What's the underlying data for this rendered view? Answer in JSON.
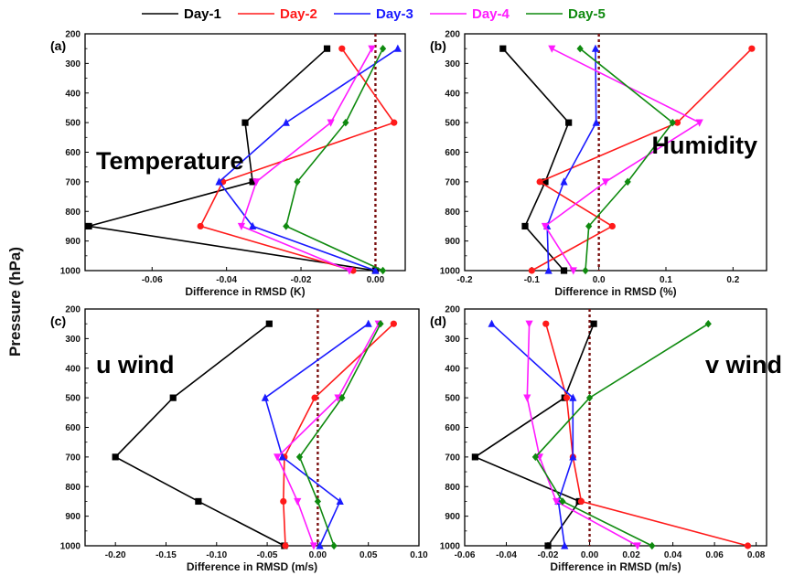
{
  "figure": {
    "y_axis_label": "Pressure (hPa)"
  },
  "legend": [
    {
      "name": "Day-1",
      "color": "#000000",
      "marker": "square"
    },
    {
      "name": "Day-2",
      "color": "#ff1a1a",
      "marker": "circle"
    },
    {
      "name": "Day-3",
      "color": "#1a1aff",
      "marker": "triangle-up"
    },
    {
      "name": "Day-4",
      "color": "#ff1aff",
      "marker": "triangle-down"
    },
    {
      "name": "Day-5",
      "color": "#0f8a0f",
      "marker": "diamond"
    }
  ],
  "chart_data": [
    {
      "type": "line",
      "panel_label": "(a)",
      "annotation": "Temperature",
      "xlabel": "Difference in RMSD (K)",
      "ylabel": "",
      "xlim": [
        -0.078,
        0.008
      ],
      "ylim": [
        200,
        1000
      ],
      "y_reversed": true,
      "xticks": [
        -0.06,
        -0.04,
        -0.02,
        0.0
      ],
      "xtick_labels": [
        "-0.06",
        "-0.04",
        "-0.02",
        "0.00"
      ],
      "yticks": [
        200,
        300,
        400,
        500,
        600,
        700,
        800,
        900,
        1000
      ],
      "zero_line": true,
      "y": [
        250,
        500,
        700,
        850,
        1000
      ],
      "series": [
        {
          "name": "Day-1",
          "values": [
            -0.013,
            -0.035,
            -0.033,
            -0.077,
            0.0
          ]
        },
        {
          "name": "Day-2",
          "values": [
            -0.009,
            0.005,
            -0.041,
            -0.047,
            -0.006
          ]
        },
        {
          "name": "Day-3",
          "values": [
            0.006,
            -0.024,
            -0.042,
            -0.033,
            0.0
          ]
        },
        {
          "name": "Day-4",
          "values": [
            -0.001,
            -0.012,
            -0.032,
            -0.036,
            -0.007
          ]
        },
        {
          "name": "Day-5",
          "values": [
            0.002,
            -0.008,
            -0.021,
            -0.024,
            0.002
          ]
        }
      ]
    },
    {
      "type": "line",
      "panel_label": "(b)",
      "annotation": "Humidity",
      "xlabel": "Difference in RMSD (%)",
      "ylabel": "",
      "xlim": [
        -0.2,
        0.25
      ],
      "ylim": [
        200,
        1000
      ],
      "y_reversed": true,
      "xticks": [
        -0.2,
        -0.1,
        0.0,
        0.1,
        0.2
      ],
      "xtick_labels": [
        "-0.2",
        "-0.1",
        "0.0",
        "0.1",
        "0.2"
      ],
      "yticks": [
        200,
        300,
        400,
        500,
        600,
        700,
        800,
        900,
        1000
      ],
      "zero_line": true,
      "y": [
        250,
        500,
        700,
        850,
        1000
      ],
      "series": [
        {
          "name": "Day-1",
          "values": [
            -0.143,
            -0.045,
            -0.08,
            -0.11,
            -0.052
          ]
        },
        {
          "name": "Day-2",
          "values": [
            0.228,
            0.117,
            -0.088,
            0.02,
            -0.1
          ]
        },
        {
          "name": "Day-3",
          "values": [
            -0.005,
            -0.004,
            -0.052,
            -0.077,
            -0.075
          ]
        },
        {
          "name": "Day-4",
          "values": [
            -0.07,
            0.15,
            0.01,
            -0.08,
            -0.038
          ]
        },
        {
          "name": "Day-5",
          "values": [
            -0.028,
            0.11,
            0.043,
            -0.015,
            -0.02
          ]
        }
      ]
    },
    {
      "type": "line",
      "panel_label": "(c)",
      "annotation": "u wind",
      "xlabel": "Difference in RMSD (m/s)",
      "ylabel": "",
      "xlim": [
        -0.23,
        0.1
      ],
      "ylim": [
        200,
        1000
      ],
      "y_reversed": true,
      "xticks": [
        -0.2,
        -0.15,
        -0.1,
        -0.05,
        0.0,
        0.05,
        0.1
      ],
      "xtick_labels": [
        "-0.20",
        "-0.15",
        "-0.10",
        "-0.05",
        "0.00",
        "0.05",
        "0.10"
      ],
      "yticks": [
        200,
        300,
        400,
        500,
        600,
        700,
        800,
        900,
        1000
      ],
      "zero_line": true,
      "y": [
        250,
        500,
        700,
        850,
        1000
      ],
      "series": [
        {
          "name": "Day-1",
          "values": [
            -0.048,
            -0.143,
            -0.2,
            -0.118,
            -0.033
          ]
        },
        {
          "name": "Day-2",
          "values": [
            0.075,
            -0.003,
            -0.033,
            -0.034,
            -0.032
          ]
        },
        {
          "name": "Day-3",
          "values": [
            0.05,
            -0.052,
            -0.035,
            0.022,
            0.002
          ]
        },
        {
          "name": "Day-4",
          "values": [
            0.06,
            0.02,
            -0.04,
            -0.02,
            -0.004
          ]
        },
        {
          "name": "Day-5",
          "values": [
            0.062,
            0.024,
            -0.018,
            0.0,
            0.016
          ]
        }
      ]
    },
    {
      "type": "line",
      "panel_label": "(d)",
      "annotation": "v wind",
      "xlabel": "Difference in RMSD (m/s)",
      "ylabel": "",
      "xlim": [
        -0.06,
        0.085
      ],
      "ylim": [
        200,
        1000
      ],
      "y_reversed": true,
      "xticks": [
        -0.06,
        -0.04,
        -0.02,
        0.0,
        0.02,
        0.04,
        0.06,
        0.08
      ],
      "xtick_labels": [
        "-0.06",
        "-0.04",
        "-0.02",
        "0.00",
        "0.02",
        "0.04",
        "0.06",
        "0.08"
      ],
      "yticks": [
        200,
        300,
        400,
        500,
        600,
        700,
        800,
        900,
        1000
      ],
      "zero_line": true,
      "y": [
        250,
        500,
        700,
        850,
        1000
      ],
      "series": [
        {
          "name": "Day-1",
          "values": [
            0.002,
            -0.012,
            -0.055,
            -0.005,
            -0.02
          ]
        },
        {
          "name": "Day-2",
          "values": [
            -0.021,
            -0.011,
            -0.008,
            -0.004,
            0.076
          ]
        },
        {
          "name": "Day-3",
          "values": [
            -0.047,
            -0.008,
            -0.008,
            -0.015,
            -0.012
          ]
        },
        {
          "name": "Day-4",
          "values": [
            -0.029,
            -0.03,
            -0.024,
            -0.016,
            0.023
          ]
        },
        {
          "name": "Day-5",
          "values": [
            0.057,
            0.0,
            -0.026,
            -0.013,
            0.03
          ]
        }
      ]
    }
  ]
}
